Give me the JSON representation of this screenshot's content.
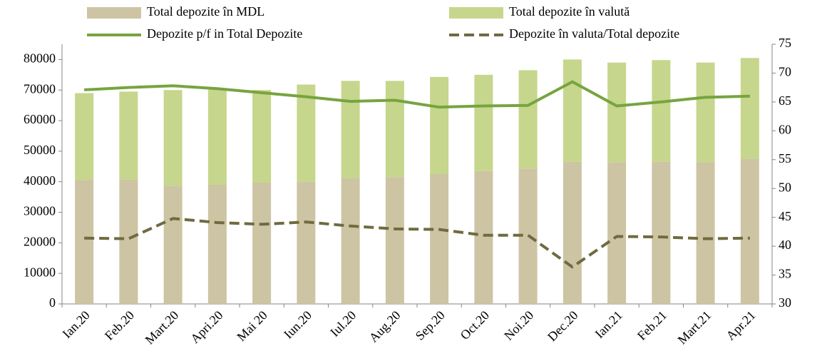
{
  "chart_data": {
    "type": "bar",
    "stacked": true,
    "categories": [
      "Ian.20",
      "Feb.20",
      "Mart.20",
      "Apri.20",
      "Mai 20",
      "Iun.20",
      "Iul.20",
      "Aug.20",
      "Sep.20",
      "Oct.20",
      "Noi.20",
      "Dec.20",
      "Ian.21",
      "Feb.21",
      "Mart.21",
      "Apr.21"
    ],
    "series": [
      {
        "name": "Total depozite în MDL",
        "type": "bar",
        "color": "#cdc4a3",
        "values": [
          40500,
          40800,
          38700,
          39000,
          39700,
          40000,
          41200,
          41500,
          42500,
          43500,
          44300,
          46500,
          46300,
          46500,
          46400,
          47500
        ]
      },
      {
        "name": "Total depozite în valută",
        "type": "bar",
        "color": "#c6d68c",
        "values": [
          28500,
          28700,
          31300,
          31500,
          30300,
          31800,
          31800,
          31500,
          31800,
          31500,
          32200,
          33500,
          32700,
          33300,
          32600,
          33000
        ]
      },
      {
        "name": "Depozite p/f in Total Depozite",
        "type": "line",
        "axis": "y2",
        "color": "#77a440",
        "values": [
          67.1,
          67.5,
          67.8,
          67.3,
          66.6,
          65.9,
          65.1,
          65.3,
          64.1,
          64.3,
          64.4,
          68.5,
          64.3,
          65.0,
          65.8,
          66.0
        ]
      },
      {
        "name": "Depozite în valuta/Total depozite",
        "type": "line",
        "axis": "y2",
        "dashed": true,
        "color": "#6f6b40",
        "values": [
          41.4,
          41.3,
          44.8,
          44.1,
          43.8,
          44.2,
          43.5,
          43.0,
          42.9,
          41.9,
          41.9,
          36.4,
          41.7,
          41.6,
          41.3,
          41.4
        ]
      }
    ],
    "ylim": [
      0,
      85000
    ],
    "yticks": [
      0,
      10000,
      20000,
      30000,
      40000,
      50000,
      60000,
      70000,
      80000
    ],
    "y2lim": [
      30,
      75
    ],
    "y2ticks": [
      30,
      35,
      40,
      45,
      50,
      55,
      60,
      65,
      70,
      75
    ],
    "grid": false
  }
}
